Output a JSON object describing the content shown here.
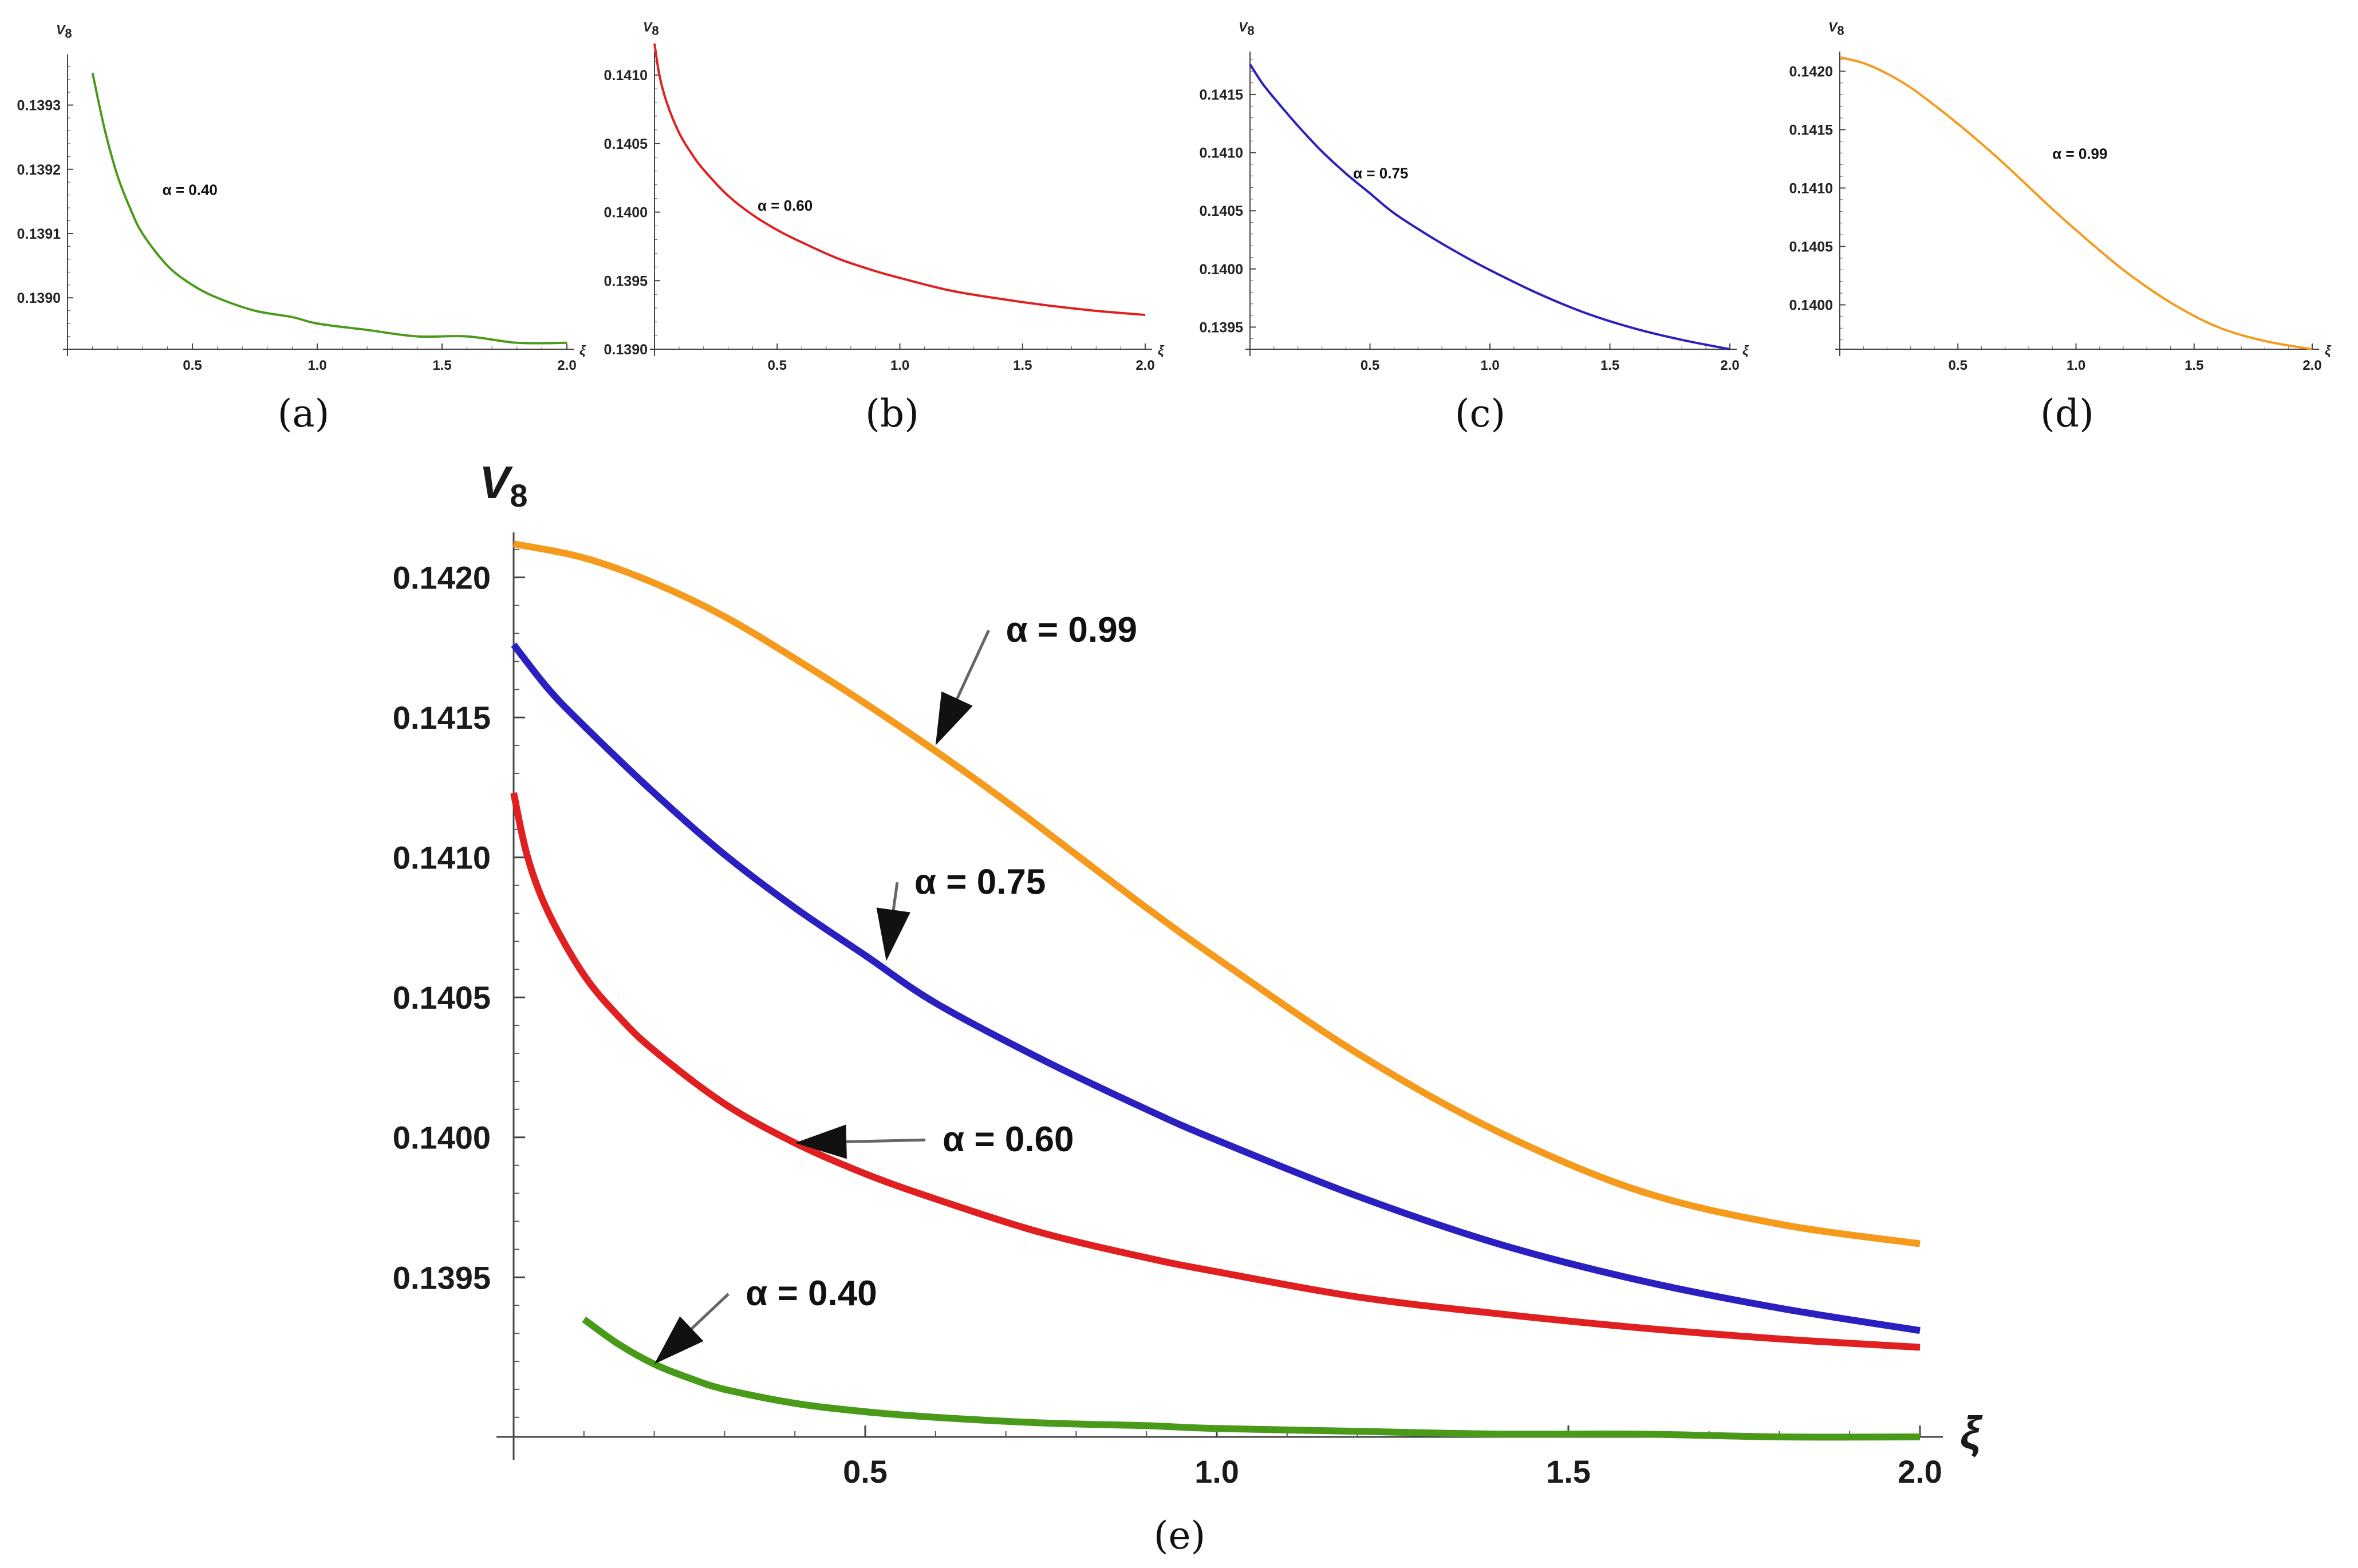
{
  "chart_data": [
    {
      "id": "a",
      "type": "line",
      "caption": "(a)",
      "ylabel": "V",
      "ylabel_sub": "8",
      "xlabel": "ξ",
      "xlim": [
        0,
        2.0
      ],
      "ylim": [
        0.13892,
        0.13937
      ],
      "x_ticks": [
        0.5,
        1.0,
        1.5,
        2.0
      ],
      "x_tick_labels": [
        "0.5",
        "1.0",
        "1.5",
        "2.0"
      ],
      "y_ticks": [
        0.139,
        0.1391,
        0.1392,
        0.1393
      ],
      "y_tick_labels": [
        "0.1390",
        "0.1391",
        "0.1392",
        "0.1393"
      ],
      "series": [
        {
          "name": "α = 0.40",
          "color": "#4a9a1a",
          "x": [
            0.1,
            0.15,
            0.2,
            0.25,
            0.3,
            0.4,
            0.5,
            0.6,
            0.75,
            0.9,
            1.0,
            1.2,
            1.4,
            1.6,
            1.8,
            2.0
          ],
          "y": [
            0.13935,
            0.13926,
            0.13919,
            0.13914,
            0.1391,
            0.13905,
            0.13902,
            0.139,
            0.13898,
            0.13897,
            0.13896,
            0.13895,
            0.13894,
            0.13894,
            0.13893,
            0.13893
          ]
        }
      ],
      "annotations": [
        {
          "text": "α = 0.40",
          "x": 0.38,
          "y": 0.13916
        }
      ]
    },
    {
      "id": "b",
      "type": "line",
      "caption": "(b)",
      "ylabel": "V",
      "ylabel_sub": "8",
      "xlabel": "ξ",
      "xlim": [
        0,
        2.0
      ],
      "ylim": [
        0.139,
        0.14113
      ],
      "x_ticks": [
        0.5,
        1.0,
        1.5,
        2.0
      ],
      "x_tick_labels": [
        "0.5",
        "1.0",
        "1.5",
        "2.0"
      ],
      "y_ticks": [
        0.139,
        0.1395,
        0.14,
        0.1405,
        0.141
      ],
      "y_tick_labels": [
        "0.1390",
        "0.1395",
        "0.1400",
        "0.1405",
        "0.1410"
      ],
      "series": [
        {
          "name": "α = 0.60",
          "color": "#e02020",
          "x": [
            0,
            0.02,
            0.05,
            0.1,
            0.15,
            0.2,
            0.3,
            0.4,
            0.5,
            0.6,
            0.75,
            0.9,
            1.0,
            1.2,
            1.4,
            1.6,
            1.8,
            2.0
          ],
          "y": [
            0.14123,
            0.141,
            0.1408,
            0.14058,
            0.14043,
            0.14031,
            0.14012,
            0.13998,
            0.13987,
            0.13978,
            0.13966,
            0.13957,
            0.13952,
            0.13943,
            0.13937,
            0.13932,
            0.13928,
            0.13925
          ]
        }
      ],
      "annotations": [
        {
          "text": "α = 0.60",
          "x": 0.42,
          "y": 0.14001
        }
      ]
    },
    {
      "id": "c",
      "type": "line",
      "caption": "(c)",
      "ylabel": "V",
      "ylabel_sub": "8",
      "xlabel": "ξ",
      "xlim": [
        0,
        2.0
      ],
      "ylim": [
        0.13931,
        0.14182
      ],
      "x_ticks": [
        0.5,
        1.0,
        1.5,
        2.0
      ],
      "x_tick_labels": [
        "0.5",
        "1.0",
        "1.5",
        "2.0"
      ],
      "y_ticks": [
        0.1395,
        0.14,
        0.1405,
        0.141,
        0.1415
      ],
      "y_tick_labels": [
        "0.1395",
        "0.1400",
        "0.1405",
        "0.1410",
        "0.1415"
      ],
      "series": [
        {
          "name": "α = 0.75",
          "color": "#2a1fbf",
          "x": [
            0,
            0.05,
            0.1,
            0.2,
            0.3,
            0.4,
            0.5,
            0.6,
            0.75,
            0.9,
            1.0,
            1.2,
            1.4,
            1.6,
            1.8,
            2.0
          ],
          "y": [
            0.14176,
            0.1416,
            0.14147,
            0.14123,
            0.14101,
            0.14082,
            0.14065,
            0.14048,
            0.14028,
            0.1401,
            0.13999,
            0.13979,
            0.13962,
            0.13949,
            0.13939,
            0.13931
          ]
        }
      ],
      "annotations": [
        {
          "text": "α = 0.75",
          "x": 0.43,
          "y": 0.14078
        }
      ]
    },
    {
      "id": "d",
      "type": "line",
      "caption": "(d)",
      "ylabel": "V",
      "ylabel_sub": "8",
      "xlabel": "ξ",
      "xlim": [
        0,
        2.0
      ],
      "ylim": [
        0.13962,
        0.14212
      ],
      "x_ticks": [
        0.5,
        1.0,
        1.5,
        2.0
      ],
      "x_tick_labels": [
        "0.5",
        "1.0",
        "1.5",
        "2.0"
      ],
      "y_ticks": [
        0.14,
        0.1405,
        0.141,
        0.1415,
        0.142
      ],
      "y_tick_labels": [
        "0.1400",
        "0.1405",
        "0.1410",
        "0.1415",
        "0.1420"
      ],
      "series": [
        {
          "name": "α = 0.99",
          "color": "#f59a1c",
          "x": [
            0,
            0.1,
            0.2,
            0.3,
            0.4,
            0.5,
            0.6,
            0.7,
            0.8,
            0.9,
            1.0,
            1.2,
            1.4,
            1.6,
            1.8,
            2.0
          ],
          "y": [
            0.14212,
            0.14207,
            0.14198,
            0.14186,
            0.14171,
            0.14155,
            0.14138,
            0.1412,
            0.14101,
            0.14082,
            0.14064,
            0.1403,
            0.14002,
            0.13981,
            0.13969,
            0.13962
          ]
        }
      ],
      "annotations": [
        {
          "text": "α = 0.99",
          "x": 0.9,
          "y": 0.14125
        }
      ]
    },
    {
      "id": "e",
      "type": "line",
      "caption": "(e)",
      "ylabel": "V",
      "ylabel_sub": "8",
      "xlabel": "ξ",
      "xlim": [
        0,
        2.0
      ],
      "ylim": [
        0.13893,
        0.14212
      ],
      "x_ticks": [
        0.5,
        1.0,
        1.5,
        2.0
      ],
      "x_tick_labels": [
        "0.5",
        "1.0",
        "1.5",
        "2.0"
      ],
      "y_ticks": [
        0.1395,
        0.14,
        0.1405,
        0.141,
        0.1415,
        0.142
      ],
      "y_tick_labels": [
        "0.1395",
        "0.1400",
        "0.1405",
        "0.1410",
        "0.1415",
        "0.1420"
      ],
      "series": [
        {
          "name": "α = 0.99",
          "color": "#f59a1c",
          "x": [
            0,
            0.1,
            0.2,
            0.3,
            0.4,
            0.5,
            0.6,
            0.7,
            0.8,
            0.9,
            1.0,
            1.2,
            1.4,
            1.6,
            1.8,
            2.0
          ],
          "y": [
            0.14212,
            0.14207,
            0.14198,
            0.14186,
            0.14171,
            0.14155,
            0.14138,
            0.1412,
            0.14101,
            0.14082,
            0.14064,
            0.1403,
            0.14002,
            0.13981,
            0.13969,
            0.13962
          ]
        },
        {
          "name": "α = 0.75",
          "color": "#2a1fbf",
          "x": [
            0,
            0.05,
            0.1,
            0.2,
            0.3,
            0.4,
            0.5,
            0.6,
            0.75,
            0.9,
            1.0,
            1.2,
            1.4,
            1.6,
            1.8,
            2.0
          ],
          "y": [
            0.14176,
            0.1416,
            0.14147,
            0.14123,
            0.14101,
            0.14082,
            0.14065,
            0.14048,
            0.14028,
            0.1401,
            0.13999,
            0.13979,
            0.13962,
            0.13949,
            0.13939,
            0.13931
          ]
        },
        {
          "name": "α = 0.60",
          "color": "#e02020",
          "x": [
            0,
            0.02,
            0.05,
            0.1,
            0.15,
            0.2,
            0.3,
            0.4,
            0.5,
            0.6,
            0.75,
            0.9,
            1.0,
            1.2,
            1.4,
            1.6,
            1.8,
            2.0
          ],
          "y": [
            0.14123,
            0.141,
            0.1408,
            0.14058,
            0.14043,
            0.14031,
            0.14012,
            0.13998,
            0.13987,
            0.13978,
            0.13966,
            0.13957,
            0.13952,
            0.13943,
            0.13937,
            0.13932,
            0.13928,
            0.13925
          ]
        },
        {
          "name": "α = 0.40",
          "color": "#4a9a1a",
          "x": [
            0.1,
            0.15,
            0.2,
            0.25,
            0.3,
            0.4,
            0.5,
            0.6,
            0.75,
            0.9,
            1.0,
            1.2,
            1.4,
            1.6,
            1.8,
            2.0
          ],
          "y": [
            0.13935,
            0.13926,
            0.13919,
            0.13914,
            0.1391,
            0.13905,
            0.13902,
            0.139,
            0.13898,
            0.13897,
            0.13896,
            0.13895,
            0.13894,
            0.13894,
            0.13893,
            0.13893
          ]
        }
      ],
      "annotations": [
        {
          "text": "α = 0.99",
          "x": 0.7,
          "y": 0.14177,
          "arrow_to": [
            0.6,
            0.1414
          ]
        },
        {
          "text": "α = 0.75",
          "x": 0.57,
          "y": 0.14087,
          "arrow_to": [
            0.53,
            0.14063
          ]
        },
        {
          "text": "α = 0.60",
          "x": 0.61,
          "y": 0.13995,
          "arrow_to": [
            0.4,
            0.13998
          ]
        },
        {
          "text": "α = 0.40",
          "x": 0.33,
          "y": 0.1394,
          "arrow_to": [
            0.2,
            0.13919
          ]
        }
      ]
    }
  ]
}
